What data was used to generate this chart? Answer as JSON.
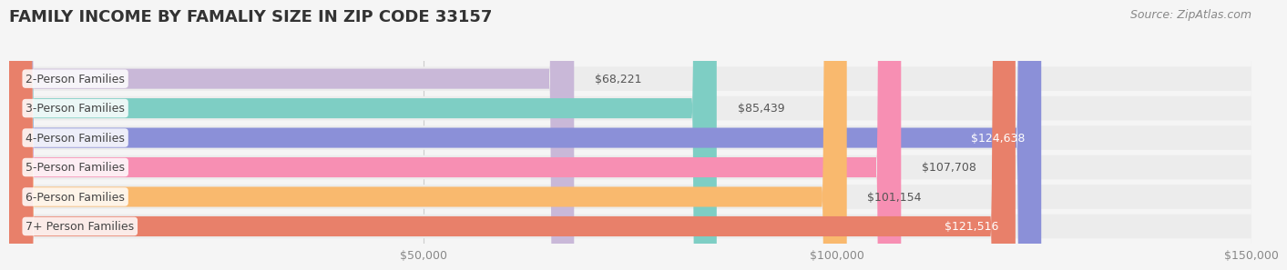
{
  "title": "FAMILY INCOME BY FAMALIY SIZE IN ZIP CODE 33157",
  "source": "Source: ZipAtlas.com",
  "categories": [
    "2-Person Families",
    "3-Person Families",
    "4-Person Families",
    "5-Person Families",
    "6-Person Families",
    "7+ Person Families"
  ],
  "values": [
    68221,
    85439,
    124638,
    107708,
    101154,
    121516
  ],
  "bar_colors": [
    "#c9b8d8",
    "#7ecec4",
    "#8b90d8",
    "#f78fb3",
    "#f9b96e",
    "#e8806a"
  ],
  "label_colors": [
    "#555555",
    "#555555",
    "#ffffff",
    "#555555",
    "#555555",
    "#ffffff"
  ],
  "background_color": "#f5f5f5",
  "bar_background_color": "#e8e8e8",
  "xlim": [
    0,
    150000
  ],
  "xticks": [
    0,
    50000,
    100000,
    150000
  ],
  "xtick_labels": [
    "",
    "$50,000",
    "$100,000",
    "$150,000"
  ],
  "title_fontsize": 13,
  "label_fontsize": 9,
  "value_fontsize": 9,
  "source_fontsize": 9
}
